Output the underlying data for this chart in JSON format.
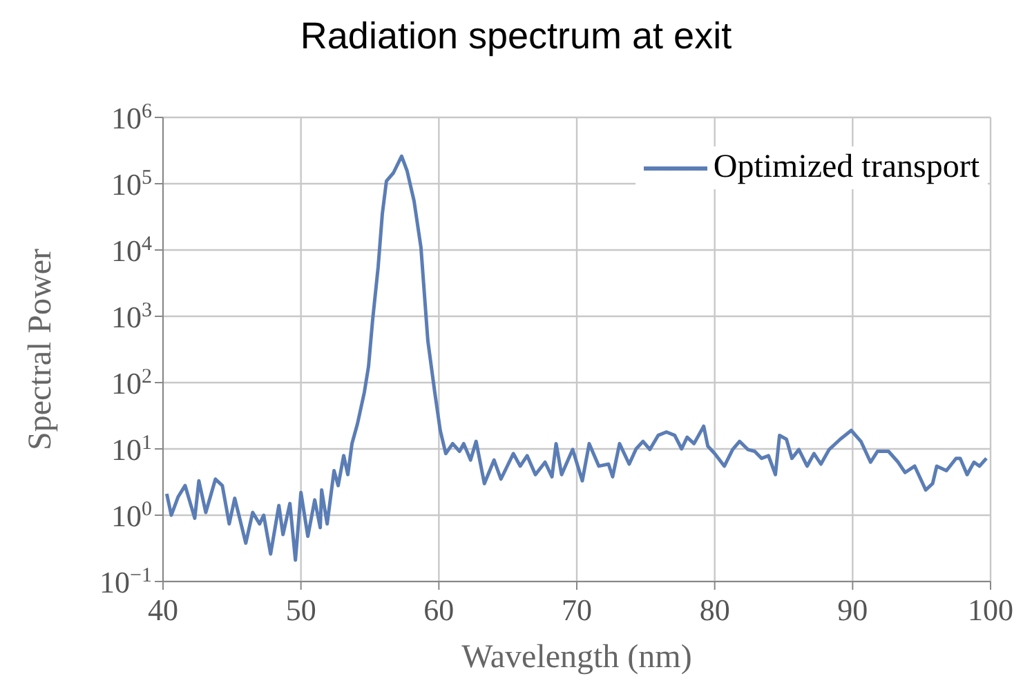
{
  "chart_data": {
    "type": "line",
    "title": "Radiation spectrum at exit",
    "xlabel": "Wavelength (nm)",
    "ylabel": "Spectral Power",
    "series": [
      {
        "name": "Optimized transport",
        "color": "#5b7db5",
        "x": [
          40.27,
          40.6,
          41.1,
          41.6,
          42.3,
          42.6,
          43.1,
          43.8,
          44.3,
          44.8,
          45.2,
          46.0,
          46.5,
          47.0,
          47.3,
          47.8,
          48.4,
          48.7,
          49.2,
          49.6,
          50.0,
          50.5,
          51.0,
          51.4,
          51.5,
          51.9,
          52.4,
          52.7,
          53.1,
          53.4,
          53.7,
          54.1,
          54.6,
          54.9,
          55.2,
          55.6,
          55.9,
          56.2,
          56.7,
          57.3,
          57.7,
          58.2,
          58.7,
          59.2,
          59.7,
          60.1,
          60.5,
          61.0,
          61.5,
          61.8,
          62.3,
          62.7,
          63.3,
          64.0,
          64.5,
          65.4,
          65.9,
          66.4,
          67.0,
          67.7,
          68.2,
          68.5,
          68.9,
          69.7,
          70.4,
          70.9,
          71.6,
          72.3,
          72.6,
          73.1,
          73.8,
          74.3,
          74.8,
          75.3,
          75.9,
          76.5,
          77.1,
          77.6,
          78.0,
          78.5,
          79.2,
          79.5,
          80.0,
          80.7,
          81.3,
          81.8,
          82.4,
          82.9,
          83.4,
          83.9,
          84.4,
          84.7,
          85.2,
          85.6,
          86.1,
          86.7,
          87.2,
          87.7,
          88.3,
          89.1,
          89.9,
          90.6,
          91.3,
          91.8,
          92.6,
          93.3,
          93.8,
          94.5,
          95.3,
          95.8,
          96.1,
          96.8,
          97.5,
          97.8,
          98.3,
          98.8,
          99.2,
          99.7
        ],
        "values": [
          2.1,
          1.0,
          1.9,
          2.8,
          0.9,
          3.3,
          1.1,
          3.5,
          2.8,
          0.74,
          1.8,
          0.38,
          1.1,
          0.74,
          1.0,
          0.26,
          1.4,
          0.51,
          1.5,
          0.21,
          2.2,
          0.48,
          1.7,
          0.65,
          2.4,
          0.74,
          4.7,
          2.8,
          7.9,
          4.1,
          12,
          24,
          72,
          175,
          890,
          5600,
          35000,
          110000,
          145000,
          260000,
          155000,
          55000,
          11000,
          430,
          72,
          19,
          8.5,
          12,
          9.2,
          12,
          6.8,
          13,
          3.0,
          6.8,
          3.5,
          8.5,
          5.5,
          7.9,
          4.1,
          6.3,
          3.8,
          12,
          4.1,
          9.8,
          3.3,
          12,
          5.5,
          5.9,
          3.8,
          12,
          5.9,
          10,
          13,
          9.8,
          16,
          18,
          16,
          10,
          15,
          12,
          22,
          11,
          8.5,
          5.5,
          9.8,
          13,
          9.8,
          9.2,
          7.2,
          7.9,
          4.1,
          16,
          14,
          7.2,
          9.8,
          5.5,
          8.5,
          5.9,
          9.8,
          14,
          19,
          13,
          6.3,
          9.2,
          9.2,
          6.3,
          4.4,
          5.5,
          2.4,
          3.0,
          5.5,
          4.7,
          7.2,
          7.2,
          4.1,
          6.3,
          5.5,
          7.2
        ]
      }
    ],
    "xlim": [
      40,
      100
    ],
    "xticks": [
      40,
      50,
      60,
      70,
      80,
      90,
      100
    ],
    "ylim": [
      0.1,
      1000000
    ],
    "log": true,
    "yticks": [
      {
        "value": 0.1,
        "label": "10$^{−1}$"
      },
      {
        "value": 1,
        "label": "10$^{0}$"
      },
      {
        "value": 10,
        "label": "10$^{1}$"
      },
      {
        "value": 100,
        "label": "10$^{2}$"
      },
      {
        "value": 1000,
        "label": "10$^{3}$"
      },
      {
        "value": 10000,
        "label": "10$^{4}$"
      },
      {
        "value": 100000,
        "label": "10$^{5}$"
      },
      {
        "value": 1000000,
        "label": "10$^{6}$"
      }
    ],
    "grid": true,
    "legend": "top right",
    "marker": "none",
    "line_style": "solid"
  }
}
